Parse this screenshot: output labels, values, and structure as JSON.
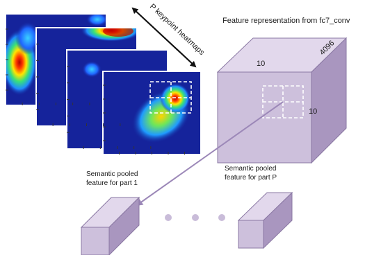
{
  "diagram": {
    "heatmaps_label": "P keypoint heatmaps",
    "feature_title": "Feature representation from fc7_conv",
    "cube_dims": {
      "width": "10",
      "height": "10",
      "depth": "4096"
    },
    "pooled_part_1": {
      "line1": "Semantic pooled",
      "line2": "feature for part 1"
    },
    "pooled_part_p": {
      "line1": "Semantic pooled",
      "line2": "feature for part P"
    },
    "colors": {
      "cube_front": "#cdc0dc",
      "cube_top": "#e2d8ec",
      "cube_side": "#a996bf",
      "edge": "#8a78a3",
      "arrow": "#9c88b8",
      "dots": "#c9bcd9",
      "heatmap_bg": "#15239b"
    }
  }
}
